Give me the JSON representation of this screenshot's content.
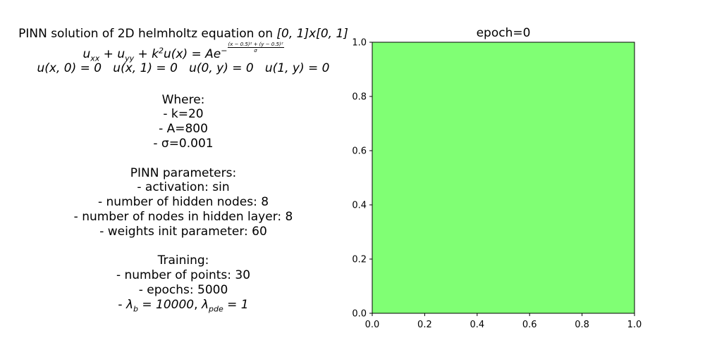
{
  "left_panel": {
    "title": "PINN solution of 2D helmholtz equation on [0,1]x[0,1]",
    "equation": "u_xx + u_yy + k^2 u(x) = A e^{-((x-0.5)^2 + (y-0.5)^2)/σ}",
    "boundary": "u(x,0) = 0   u(x,1) = 0   u(0,y) = 0   u(1,y) = 0",
    "where_header": "Where:",
    "where_items": [
      "- k=20",
      "- A=800",
      "- σ=0.001"
    ],
    "pinn_header": "PINN parameters:",
    "pinn_items": [
      "- activation: sin",
      "- number of hidden nodes: 8",
      "- number of nodes in hidden layer: 8",
      "- weights init parameter: 60"
    ],
    "training_header": "Training:",
    "training_items": [
      "- number of points: 30",
      "- epochs: 5000",
      "- λ_b = 10000, λ_pde = 1"
    ]
  },
  "chart_data": {
    "type": "heatmap",
    "title": "epoch=0",
    "xlim": [
      0.0,
      1.0
    ],
    "ylim": [
      0.0,
      1.0
    ],
    "xticks": [
      0.0,
      0.2,
      0.4,
      0.6,
      0.8,
      1.0
    ],
    "yticks": [
      0.0,
      0.2,
      0.4,
      0.6,
      0.8,
      1.0
    ],
    "xtick_labels": [
      "0.0",
      "0.2",
      "0.4",
      "0.6",
      "0.8",
      "1.0"
    ],
    "ytick_labels": [
      "0.0",
      "0.2",
      "0.4",
      "0.6",
      "0.8",
      "1.0"
    ],
    "fill_color": "#80ff74",
    "grid": false
  }
}
